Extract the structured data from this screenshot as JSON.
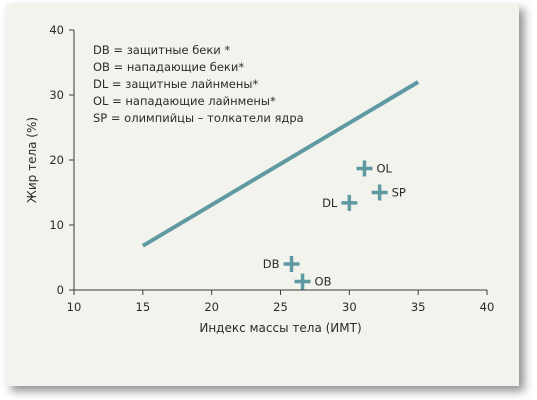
{
  "chart_data": {
    "type": "scatter",
    "xlabel": "Индекс массы тела (ИМТ)",
    "ylabel": "Жир тела  (%)",
    "xlim": [
      10,
      40
    ],
    "ylim": [
      0,
      40
    ],
    "xticks": [
      10,
      15,
      20,
      25,
      30,
      35,
      40
    ],
    "yticks": [
      0,
      10,
      20,
      30,
      40
    ],
    "grid": false,
    "legend_position": "top-left",
    "legend": [
      "DB = защитные беки *",
      "OB = нападающие беки*",
      "DL = защитные лайнмены*",
      "OL = нападающие лайнмены*",
      "SP = олимпийцы – толкатели ядра"
    ],
    "line": {
      "x": [
        15,
        35
      ],
      "y": [
        6.8,
        32
      ]
    },
    "points": [
      {
        "label": "DB",
        "x": 25.8,
        "y": 4.0,
        "label_side": "left"
      },
      {
        "label": "OB",
        "x": 26.6,
        "y": 1.3,
        "label_side": "right"
      },
      {
        "label": "DL",
        "x": 30.0,
        "y": 13.4,
        "label_side": "left"
      },
      {
        "label": "OL",
        "x": 31.1,
        "y": 18.7,
        "label_side": "right"
      },
      {
        "label": "SP",
        "x": 32.2,
        "y": 15.0,
        "label_side": "right"
      }
    ],
    "colors": {
      "series": "#5f9aa3",
      "axis": "#3a3a3a",
      "background": "#f2f3ec"
    }
  }
}
